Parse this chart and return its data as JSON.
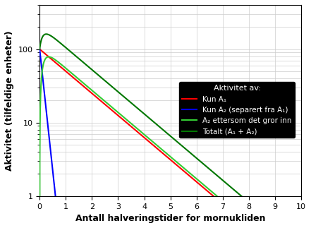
{
  "title": "",
  "xlabel": "Antall halveringstider for mornukliden",
  "ylabel": "Aktivitet (tilfeldige enheter)",
  "xlim": [
    0,
    10
  ],
  "ylim_log": [
    1,
    400
  ],
  "yticks": [
    1,
    10,
    100
  ],
  "xticks": [
    0,
    1,
    2,
    3,
    4,
    5,
    6,
    7,
    8,
    9,
    10
  ],
  "A1_color": "#ff0000",
  "A2_sep_color": "#0000ff",
  "A2_growin_color": "#33cc33",
  "total_color": "#007700",
  "legend_title": "Aktivitet av:",
  "legend_entries": [
    "Kun A₁",
    "Kun A₂ (separert fra A₁)",
    "A₂ ettersom det gror inn",
    "Totalt (A₁ + A₂)"
  ],
  "background_color": "#ffffff",
  "grid_color": "#cccccc",
  "A1_initial": 100,
  "lambda_ratio": 2.0,
  "line_width": 1.5,
  "legend_facecolor": "#000000",
  "legend_edgecolor": "#000000",
  "legend_fontsize": 7.5,
  "legend_title_fontsize": 8,
  "xlabel_fontsize": 9,
  "ylabel_fontsize": 9,
  "tick_labelsize": 8
}
